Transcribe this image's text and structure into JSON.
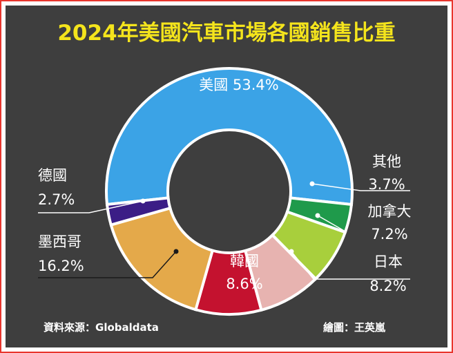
{
  "title": "2024年美國汽車市場各國銷售比重",
  "footer": {
    "source": "資料來源：Globaldata",
    "credit": "繪圖：王英嵐"
  },
  "chart_data": {
    "type": "pie",
    "title": "2024年美國汽車市場各國銷售比重",
    "slices": [
      {
        "label": "美國",
        "value": 53.4,
        "value_text": "53.4%",
        "color": "#3ba3e6"
      },
      {
        "label": "其他",
        "value": 3.7,
        "value_text": "3.7%",
        "color": "#1f9a4b"
      },
      {
        "label": "加拿大",
        "value": 7.2,
        "value_text": "7.2%",
        "color": "#a8cf3c"
      },
      {
        "label": "日本",
        "value": 8.2,
        "value_text": "8.2%",
        "color": "#e7b3b0"
      },
      {
        "label": "韓國",
        "value": 8.6,
        "value_text": "8.6%",
        "color": "#c4122f"
      },
      {
        "label": "墨西哥",
        "value": 16.2,
        "value_text": "16.2%",
        "color": "#e4a94a"
      },
      {
        "label": "德國",
        "value": 2.7,
        "value_text": "2.7%",
        "color": "#3b1d86"
      }
    ]
  }
}
